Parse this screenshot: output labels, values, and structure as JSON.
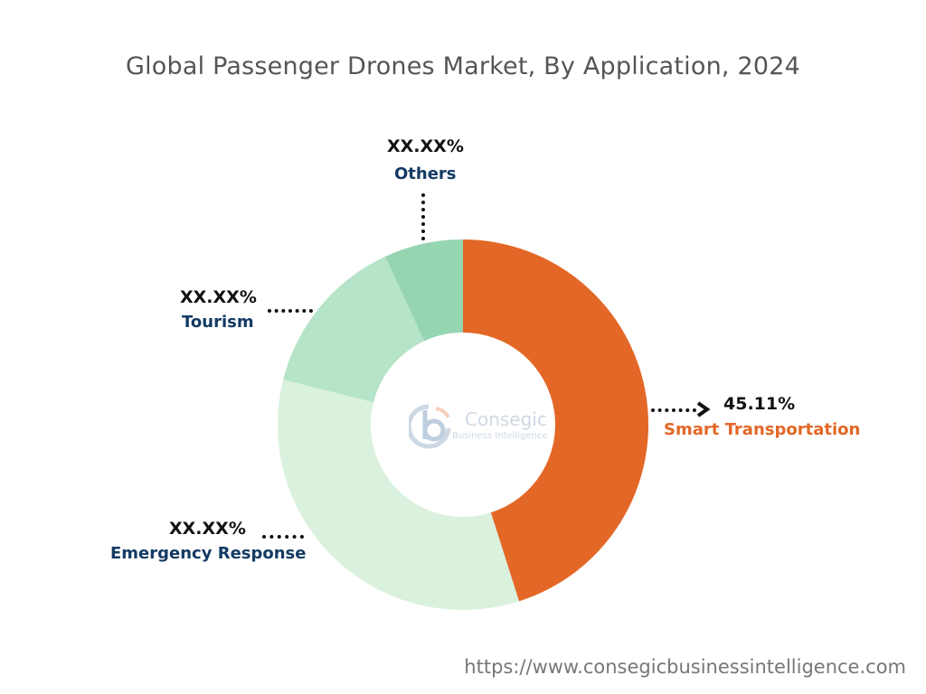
{
  "chart_data": {
    "type": "pie",
    "donut": true,
    "title": "Global Passenger Drones Market, By Application, 2024",
    "categories": [
      "Smart Transportation",
      "Emergency Response",
      "Tourism",
      "Others"
    ],
    "values": [
      45.11,
      33.8,
      14.2,
      6.89
    ],
    "data_labels": [
      "45.11%",
      "XX.XX%",
      "XX.XX%",
      "XX.XX%"
    ],
    "colors": [
      "#E36726",
      "#DAF1DE",
      "#B5E4C8",
      "#96D5B2"
    ],
    "label_colors": [
      "#E36726",
      "#133A63",
      "#133A63",
      "#133A63"
    ]
  },
  "logo": {
    "name": "Consegic",
    "tagline": "Business Intelligence"
  },
  "footer_url": "https://www.consegicbusinessintelligence.com"
}
